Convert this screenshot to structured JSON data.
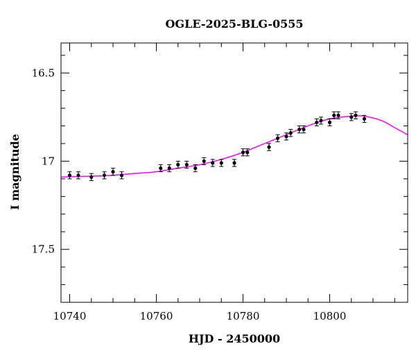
{
  "chart_data": {
    "type": "scatter",
    "title": "OGLE-2025-BLG-0555",
    "xlabel": "HJD - 2450000",
    "ylabel": "I magnitude",
    "xlim": [
      10738,
      10818
    ],
    "ylim": [
      17.8,
      16.33
    ],
    "y_inverted": true,
    "x_major_ticks": [
      10740,
      10760,
      10780,
      10800
    ],
    "x_tick_labels": [
      "10740",
      "10760",
      "10780",
      "10800"
    ],
    "x_minor_step": 5,
    "y_major_ticks": [
      16.5,
      17.0,
      17.5
    ],
    "y_tick_labels": [
      "16.5",
      "17",
      "17.5"
    ],
    "y_minor_step": 0.1,
    "grid": false,
    "points": {
      "x": [
        10740.0,
        10742.0,
        10745.0,
        10748.0,
        10750.0,
        10752.0,
        10761.0,
        10763.0,
        10765.0,
        10767.0,
        10769.0,
        10771.0,
        10773.0,
        10775.0,
        10778.0,
        10780.0,
        10781.0,
        10786.0,
        10788.0,
        10790.0,
        10791.0,
        10793.0,
        10794.0,
        10797.0,
        10798.0,
        10800.0,
        10801.0,
        10802.0,
        10805.0,
        10806.0,
        10808.0
      ],
      "y": [
        17.08,
        17.08,
        17.09,
        17.08,
        17.06,
        17.08,
        17.04,
        17.04,
        17.02,
        17.02,
        17.04,
        17.0,
        17.01,
        17.01,
        17.01,
        16.95,
        16.95,
        16.92,
        16.87,
        16.86,
        16.84,
        16.82,
        16.82,
        16.78,
        16.77,
        16.78,
        16.74,
        16.74,
        16.75,
        16.74,
        16.76
      ],
      "err": [
        0.02,
        0.02,
        0.02,
        0.02,
        0.02,
        0.02,
        0.02,
        0.02,
        0.02,
        0.02,
        0.02,
        0.02,
        0.02,
        0.02,
        0.02,
        0.02,
        0.02,
        0.02,
        0.02,
        0.02,
        0.02,
        0.02,
        0.02,
        0.02,
        0.02,
        0.02,
        0.02,
        0.02,
        0.02,
        0.02,
        0.02
      ]
    },
    "model_curve": {
      "x": [
        10738,
        10745,
        10750,
        10755,
        10760,
        10765,
        10770,
        10775,
        10780,
        10785,
        10790,
        10795,
        10800,
        10805,
        10808,
        10812,
        10815,
        10818
      ],
      "y": [
        17.09,
        17.085,
        17.08,
        17.07,
        17.06,
        17.04,
        17.02,
        16.99,
        16.95,
        16.9,
        16.85,
        16.8,
        16.76,
        16.745,
        16.745,
        16.77,
        16.81,
        16.85
      ]
    },
    "colors": {
      "points": "#000000",
      "model": "#ff00ff",
      "axes": "#000000"
    }
  }
}
